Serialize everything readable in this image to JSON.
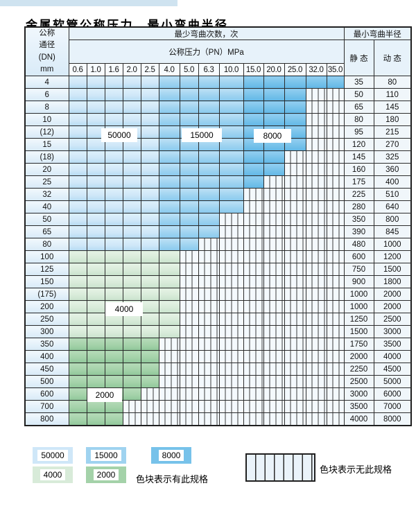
{
  "title": "金属软管公称压力、最小弯曲半径",
  "table": {
    "corner_header": [
      "公称",
      "通径",
      "(DN)",
      "mm"
    ],
    "bend_cycles_header": "最少弯曲次数，次",
    "pressure_header": "公称压力（PN）MPa",
    "pressure_columns": [
      "0.6",
      "1.0",
      "1.6",
      "2.0",
      "2.5",
      "4.0",
      "5.0",
      "6.3",
      "10.0",
      "15.0",
      "20.0",
      "25.0",
      "32.0",
      "35.0"
    ],
    "radius_header": "最小弯曲半径",
    "static_header": "静 态",
    "dynamic_header": "动 态",
    "rows": [
      {
        "dn": "4",
        "max_pn": "35.0",
        "static": "35",
        "dynamic": "80",
        "group": "blue"
      },
      {
        "dn": "6",
        "max_pn": "25.0",
        "static": "50",
        "dynamic": "110",
        "group": "blue"
      },
      {
        "dn": "8",
        "max_pn": "25.0",
        "static": "65",
        "dynamic": "145",
        "group": "blue"
      },
      {
        "dn": "10",
        "max_pn": "25.0",
        "static": "80",
        "dynamic": "180",
        "group": "blue"
      },
      {
        "dn": "(12)",
        "max_pn": "25.0",
        "static": "95",
        "dynamic": "215",
        "group": "blue"
      },
      {
        "dn": "15",
        "max_pn": "25.0",
        "static": "120",
        "dynamic": "270",
        "group": "blue"
      },
      {
        "dn": "(18)",
        "max_pn": "20.0",
        "static": "145",
        "dynamic": "325",
        "group": "blue"
      },
      {
        "dn": "20",
        "max_pn": "20.0",
        "static": "160",
        "dynamic": "360",
        "group": "blue"
      },
      {
        "dn": "25",
        "max_pn": "15.0",
        "static": "175",
        "dynamic": "400",
        "group": "blue"
      },
      {
        "dn": "32",
        "max_pn": "10.0",
        "static": "225",
        "dynamic": "510",
        "group": "blue"
      },
      {
        "dn": "40",
        "max_pn": "10.0",
        "static": "280",
        "dynamic": "640",
        "group": "blue"
      },
      {
        "dn": "50",
        "max_pn": "6.3",
        "static": "350",
        "dynamic": "800",
        "group": "blue"
      },
      {
        "dn": "65",
        "max_pn": "6.3",
        "static": "390",
        "dynamic": "845",
        "group": "blue"
      },
      {
        "dn": "80",
        "max_pn": "5.0",
        "static": "480",
        "dynamic": "1000",
        "group": "blue"
      },
      {
        "dn": "100",
        "max_pn": "4.0",
        "static": "600",
        "dynamic": "1200",
        "group": "g1"
      },
      {
        "dn": "125",
        "max_pn": "4.0",
        "static": "750",
        "dynamic": "1500",
        "group": "g1"
      },
      {
        "dn": "150",
        "max_pn": "4.0",
        "static": "900",
        "dynamic": "1800",
        "group": "g1"
      },
      {
        "dn": "(175)",
        "max_pn": "4.0",
        "static": "1000",
        "dynamic": "2000",
        "group": "g1"
      },
      {
        "dn": "200",
        "max_pn": "4.0",
        "static": "1000",
        "dynamic": "2000",
        "group": "g1"
      },
      {
        "dn": "250",
        "max_pn": "4.0",
        "static": "1250",
        "dynamic": "2500",
        "group": "g1"
      },
      {
        "dn": "300",
        "max_pn": "4.0",
        "static": "1500",
        "dynamic": "3000",
        "group": "g1"
      },
      {
        "dn": "350",
        "max_pn": "2.5",
        "static": "1750",
        "dynamic": "3500",
        "group": "g2"
      },
      {
        "dn": "400",
        "max_pn": "2.5",
        "static": "2000",
        "dynamic": "4000",
        "group": "g2"
      },
      {
        "dn": "450",
        "max_pn": "2.5",
        "static": "2250",
        "dynamic": "4500",
        "group": "g2"
      },
      {
        "dn": "500",
        "max_pn": "2.5",
        "static": "2500",
        "dynamic": "5000",
        "group": "g2"
      },
      {
        "dn": "600",
        "max_pn": "2.0",
        "static": "3000",
        "dynamic": "6000",
        "group": "g2"
      },
      {
        "dn": "700",
        "max_pn": "1.6",
        "static": "3500",
        "dynamic": "7000",
        "group": "g2"
      },
      {
        "dn": "800",
        "max_pn": "1.6",
        "static": "4000",
        "dynamic": "8000",
        "group": "g2"
      }
    ]
  },
  "zone_labels": {
    "z50000": "50000",
    "z15000": "15000",
    "z8000": "8000",
    "z4000": "4000",
    "z2000": "2000"
  },
  "legend": {
    "items": [
      {
        "label": "50000",
        "color": "#cfe7f8"
      },
      {
        "label": "15000",
        "color": "#9fd3f0"
      },
      {
        "label": "8000",
        "color": "#77c2ea"
      },
      {
        "label": "4000",
        "color": "#d8ebd9"
      },
      {
        "label": "2000",
        "color": "#a4d2a9"
      }
    ],
    "has_spec_text": "色块表示有此规格",
    "no_spec_text": "色块表示无此规格"
  },
  "colors": {
    "blue-50000": "#cfe7f8",
    "blue-15000": "#9fd3f0",
    "blue-8000": "#77c2ea",
    "green-4000": "#d8ebd9",
    "green-2000": "#a4d2a9",
    "hatch-bg": "#f4f9fd"
  },
  "chart_data": {
    "type": "table",
    "title": "金属软管公称压力、最小弯曲半径",
    "notes": "色块表示有此规格；竖线阴影格表示无此规格",
    "cycle_zones": [
      {
        "cycles": 50000,
        "pn_columns": "0.6–2.5",
        "dn_rows": "4–80"
      },
      {
        "cycles": 15000,
        "pn_columns": "4.0–10.0",
        "dn_rows": "4–80"
      },
      {
        "cycles": 8000,
        "pn_columns": "15.0–35.0",
        "dn_rows": "4–80"
      },
      {
        "cycles": 4000,
        "pn_columns": "0.6–4.0",
        "dn_rows": "100–300"
      },
      {
        "cycles": 2000,
        "pn_columns": "0.6–2.5",
        "dn_rows": "350–800"
      }
    ]
  }
}
